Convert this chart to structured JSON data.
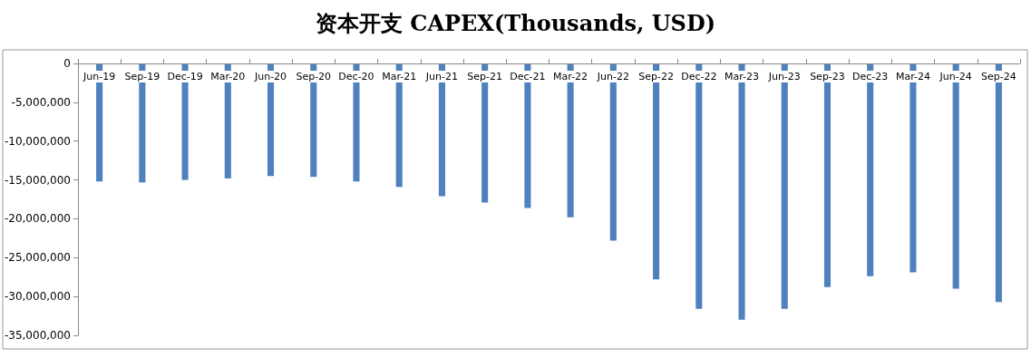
{
  "chart_data": {
    "type": "bar",
    "title": "资本开支 CAPEX(Thousands, USD)",
    "categories": [
      "Jun-19",
      "Sep-19",
      "Dec-19",
      "Mar-20",
      "Jun-20",
      "Sep-20",
      "Dec-20",
      "Mar-21",
      "Jun-21",
      "Sep-21",
      "Dec-21",
      "Mar-22",
      "Jun-22",
      "Sep-22",
      "Dec-22",
      "Mar-23",
      "Jun-23",
      "Sep-23",
      "Dec-23",
      "Mar-24",
      "Jun-24",
      "Sep-24"
    ],
    "values": [
      -15200000,
      -15300000,
      -15000000,
      -14800000,
      -14500000,
      -14600000,
      -15200000,
      -15900000,
      -17100000,
      -17900000,
      -18600000,
      -19800000,
      -22800000,
      -27800000,
      -31600000,
      -33000000,
      -31600000,
      -28800000,
      -27400000,
      -26900000,
      -29000000,
      -30700000
    ],
    "color": "#4f81bd",
    "ylim": [
      -35000000,
      0
    ],
    "yticks": [
      0,
      {
        "value": -5000000,
        "label": "-5,000,000"
      },
      {
        "value": -10000000,
        "label": "-10,000,000"
      },
      {
        "value": -15000000,
        "label": "-15,000,000"
      },
      {
        "value": -20000000,
        "label": "-20,000,000"
      },
      {
        "value": -25000000,
        "label": "-25,000,000"
      },
      {
        "value": -30000000,
        "label": "-30,000,000"
      },
      {
        "value": -35000000,
        "label": "-35,000,000"
      }
    ],
    "grid": false
  }
}
